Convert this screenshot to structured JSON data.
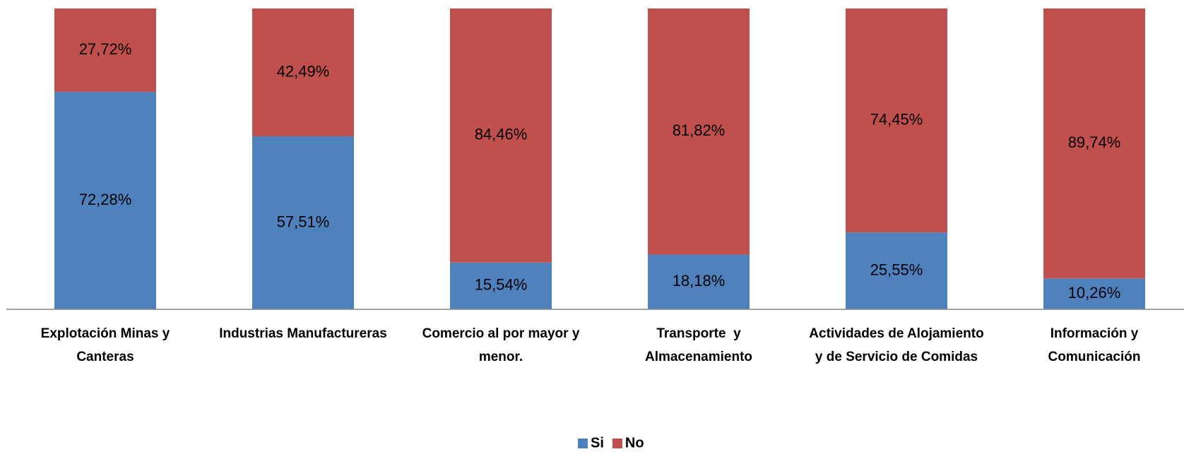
{
  "chart_data": {
    "type": "stacked_bar_100",
    "categories": [
      "Explotación Minas y Canteras",
      "Industrias Manufactureras",
      "Comercio al por mayor y menor.",
      "Transporte  y Almacenamiento",
      "Actividades de Alojamiento y de Servicio de Comidas",
      "Información y Comunicación"
    ],
    "series": [
      {
        "name": "Si",
        "color": "#4f81bd",
        "values": [
          72.28,
          57.51,
          15.54,
          18.18,
          25.55,
          10.26
        ],
        "value_labels": [
          "72,28%",
          "57,51%",
          "15,54%",
          "18,18%",
          "25,55%",
          "10,26%"
        ]
      },
      {
        "name": "No",
        "color": "#c0504d",
        "values": [
          27.72,
          42.49,
          84.46,
          81.82,
          74.45,
          89.74
        ],
        "value_labels": [
          "27,72%",
          "42,49%",
          "84,46%",
          "81,82%",
          "74,45%",
          "89,74%"
        ]
      }
    ],
    "ylim": [
      0,
      100
    ],
    "legend": "bottom"
  }
}
